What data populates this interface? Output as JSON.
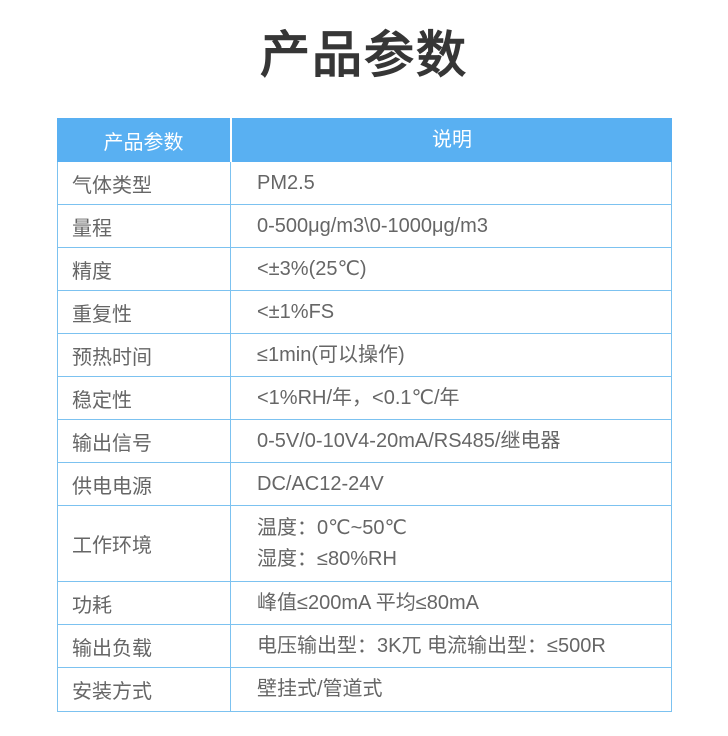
{
  "page": {
    "title": "产品参数"
  },
  "table": {
    "header": {
      "col_param": "产品参数",
      "col_description": "说明"
    },
    "rows": [
      {
        "label": "气体类型",
        "value": "PM2.5"
      },
      {
        "label": "量程",
        "value": "0-500μg/m3\\0-1000μg/m3"
      },
      {
        "label": "精度",
        "value": "<±3%(25℃)"
      },
      {
        "label": "重复性",
        "value": "<±1%FS"
      },
      {
        "label": "预热时间",
        "value": "≤1min(可以操作)"
      },
      {
        "label": "稳定性",
        "value": "<1%RH/年，<0.1℃/年"
      },
      {
        "label": "输出信号",
        "value": "0-5V/0-10V4-20mA/RS485/继电器"
      },
      {
        "label": "供电电源",
        "value": "DC/AC12-24V"
      },
      {
        "label": "工作环境",
        "value_lines": [
          "温度：0℃~50℃",
          "湿度：≤80%RH"
        ]
      },
      {
        "label": "功耗",
        "value": "峰值≤200mA 平均≤80mA"
      },
      {
        "label": "输出负载",
        "value": "电压输出型：3K兀 电流输出型：≤500R"
      },
      {
        "label": "安装方式",
        "value": "壁挂式/管道式"
      }
    ]
  },
  "colors": {
    "header_bg": "#59B0F2",
    "border": "#7CC2F0",
    "header_text": "#FFFFFF",
    "body_text": "#666666",
    "title_text": "#363636"
  }
}
